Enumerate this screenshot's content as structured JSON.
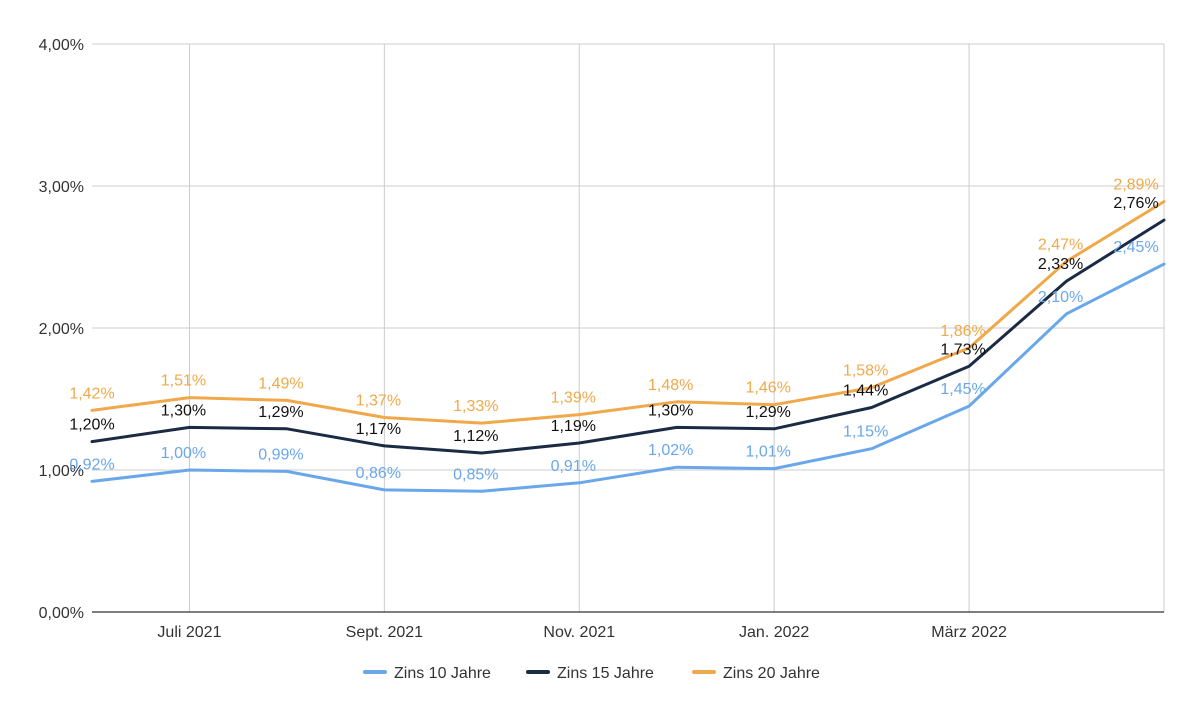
{
  "chart_data": {
    "type": "line",
    "title": "",
    "xlabel": "",
    "ylabel": "",
    "ylim": [
      0,
      4
    ],
    "y_ticks": [
      0,
      1,
      2,
      3,
      4
    ],
    "y_tick_labels": [
      "0,00%",
      "1,00%",
      "2,00%",
      "3,00%",
      "4,00%"
    ],
    "x_points": [
      "2021-06",
      "2021-07",
      "2021-08",
      "2021-09",
      "2021-10",
      "2021-11",
      "2021-12",
      "2022-01",
      "2022-02",
      "2022-03",
      "2022-04",
      "2022-05"
    ],
    "x_ticks": [
      "2021-07",
      "2021-09",
      "2021-11",
      "2022-01",
      "2022-03"
    ],
    "x_tick_labels": [
      "Juli 2021",
      "Sept. 2021",
      "Nov. 2021",
      "Jan. 2022",
      "März 2022"
    ],
    "grid": true,
    "legend_position": "bottom",
    "series": [
      {
        "name": "Zins 10 Jahre",
        "color": "#6aa7ea",
        "values": [
          0.92,
          1.0,
          0.99,
          0.86,
          0.85,
          0.91,
          1.02,
          1.01,
          1.15,
          1.45,
          2.1,
          2.45
        ],
        "labels": [
          "0,92%",
          "1,00%",
          "0,99%",
          "0,86%",
          "0,85%",
          "0,91%",
          "1,02%",
          "1,01%",
          "1,15%",
          "1,45%",
          "2,10%",
          "2,45%"
        ]
      },
      {
        "name": "Zins 15 Jahre",
        "color": "#1c2b44",
        "values": [
          1.2,
          1.3,
          1.29,
          1.17,
          1.12,
          1.19,
          1.3,
          1.29,
          1.44,
          1.73,
          2.33,
          2.76
        ],
        "labels": [
          "1,20%",
          "1,30%",
          "1,29%",
          "1,17%",
          "1,12%",
          "1,19%",
          "1,30%",
          "1,29%",
          "1,44%",
          "1,73%",
          "2,33%",
          "2,76%"
        ]
      },
      {
        "name": "Zins 20 Jahre",
        "color": "#f0a94a",
        "values": [
          1.42,
          1.51,
          1.49,
          1.37,
          1.33,
          1.39,
          1.48,
          1.46,
          1.58,
          1.86,
          2.47,
          2.89
        ],
        "labels": [
          "1,42%",
          "1,51%",
          "1,49%",
          "1,37%",
          "1,33%",
          "1,39%",
          "1,48%",
          "1,46%",
          "1,58%",
          "1,86%",
          "2,47%",
          "2,89%"
        ]
      }
    ]
  }
}
